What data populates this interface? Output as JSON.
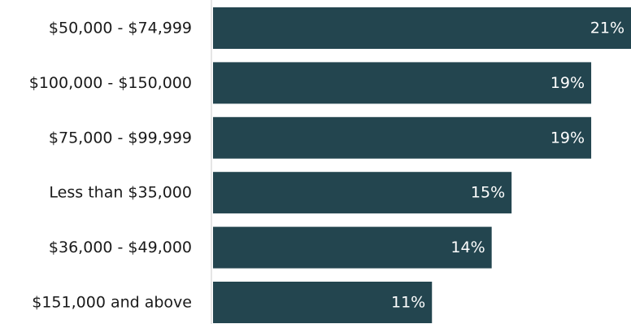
{
  "chart_data": {
    "type": "bar",
    "orientation": "horizontal",
    "categories": [
      "$50,000 - $74,999",
      "$100,000 - $150,000",
      "$75,000 - $99,999",
      "Less than $35,000",
      "$36,000 - $49,000",
      "$151,000 and above"
    ],
    "values": [
      21,
      19,
      19,
      15,
      14,
      11
    ],
    "value_labels": [
      "21%",
      "19%",
      "19%",
      "15%",
      "14%",
      "11%"
    ],
    "unit": "%",
    "xlim": [
      0,
      21
    ],
    "grid": false,
    "legend": "none",
    "bar_color": "#23454f",
    "title": "",
    "xlabel": "",
    "ylabel": ""
  }
}
